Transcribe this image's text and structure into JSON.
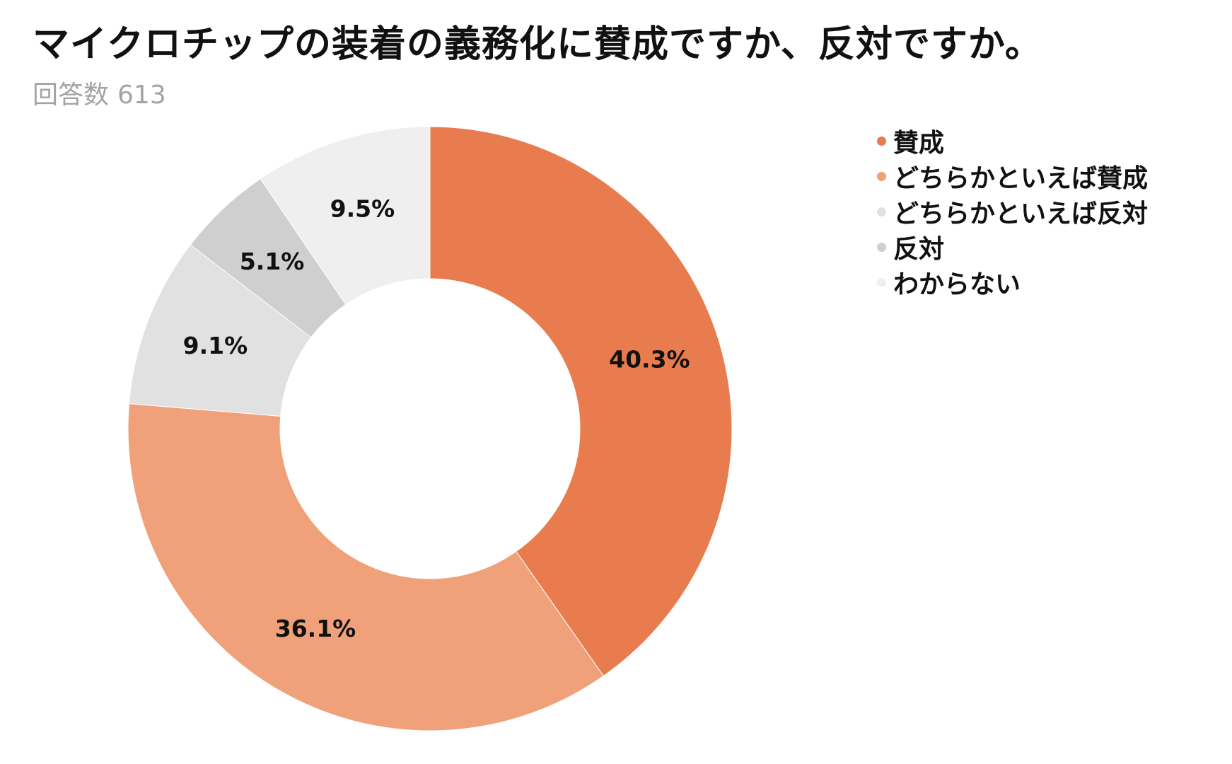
{
  "title": "マイクロチップの装着の義務化に賛成ですか、反対ですか。",
  "subtitle": {
    "label": "回答数",
    "count": "613"
  },
  "colors": {
    "賛成": "#e97c4e",
    "どちらかといえば賛成": "#f0a17a",
    "どちらかといえば反対": "#e1e1e1",
    "反対": "#cfcfcf",
    "わからない": "#efefef"
  },
  "chart_data": {
    "type": "pie",
    "variant": "donut",
    "start": "top",
    "direction": "clockwise",
    "legend_position": "top-right",
    "slices": [
      {
        "label": "賛成",
        "value": 40.3,
        "display": "40.3%",
        "color": "#e97c4e"
      },
      {
        "label": "どちらかといえば賛成",
        "value": 36.1,
        "display": "36.1%",
        "color": "#f0a17a"
      },
      {
        "label": "どちらかといえば反対",
        "value": 9.1,
        "display": "9.1%",
        "color": "#e1e1e1"
      },
      {
        "label": "反対",
        "value": 5.1,
        "display": "5.1%",
        "color": "#cfcfcf"
      },
      {
        "label": "わからない",
        "value": 9.5,
        "display": "9.5%",
        "color": "#efefef"
      }
    ]
  }
}
